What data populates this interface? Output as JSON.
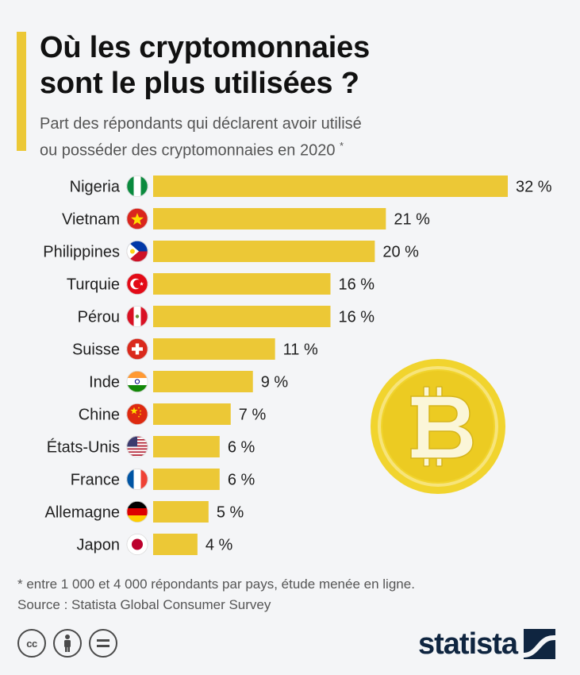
{
  "header": {
    "title_line1": "Où les cryptomonnaies",
    "title_line2": "sont le plus utilisées ?",
    "subtitle_line1": "Part des répondants qui déclarent avoir utilisé",
    "subtitle_line2": "ou posséder des cryptomonnaies en 2020",
    "subtitle_marker": "*"
  },
  "colors": {
    "bar": "#ecc836",
    "background": "#f4f5f7",
    "coin": "#f1d42e",
    "brand": "#0f2540"
  },
  "chart_data": {
    "type": "bar",
    "orientation": "horizontal",
    "unit": "%",
    "xlim": [
      0,
      32
    ],
    "grid": false,
    "categories": [
      "Nigeria",
      "Vietnam",
      "Philippines",
      "Turquie",
      "Pérou",
      "Suisse",
      "Inde",
      "Chine",
      "États-Unis",
      "France",
      "Allemagne",
      "Japon"
    ],
    "values": [
      32,
      21,
      20,
      16,
      16,
      11,
      9,
      7,
      6,
      6,
      5,
      4
    ],
    "value_labels": [
      "32 %",
      "21 %",
      "20 %",
      "16 %",
      "16 %",
      "11 %",
      "9 %",
      "7 %",
      "6 %",
      "6 %",
      "5 %",
      "4 %"
    ],
    "flags": [
      "nigeria-flag-icon",
      "vietnam-flag-icon",
      "philippines-flag-icon",
      "turkey-flag-icon",
      "peru-flag-icon",
      "switzerland-flag-icon",
      "india-flag-icon",
      "china-flag-icon",
      "usa-flag-icon",
      "france-flag-icon",
      "germany-flag-icon",
      "japan-flag-icon"
    ]
  },
  "decoration": {
    "coin_icon": "bitcoin-coin-icon"
  },
  "footer": {
    "note": "* entre 1 000 et 4 000 répondants par pays, étude menée en ligne.",
    "source": "Source : Statista Global Consumer Survey",
    "license_icons": [
      "creative-commons-icon",
      "attribution-icon",
      "no-derivatives-icon"
    ],
    "brand": "statista"
  }
}
